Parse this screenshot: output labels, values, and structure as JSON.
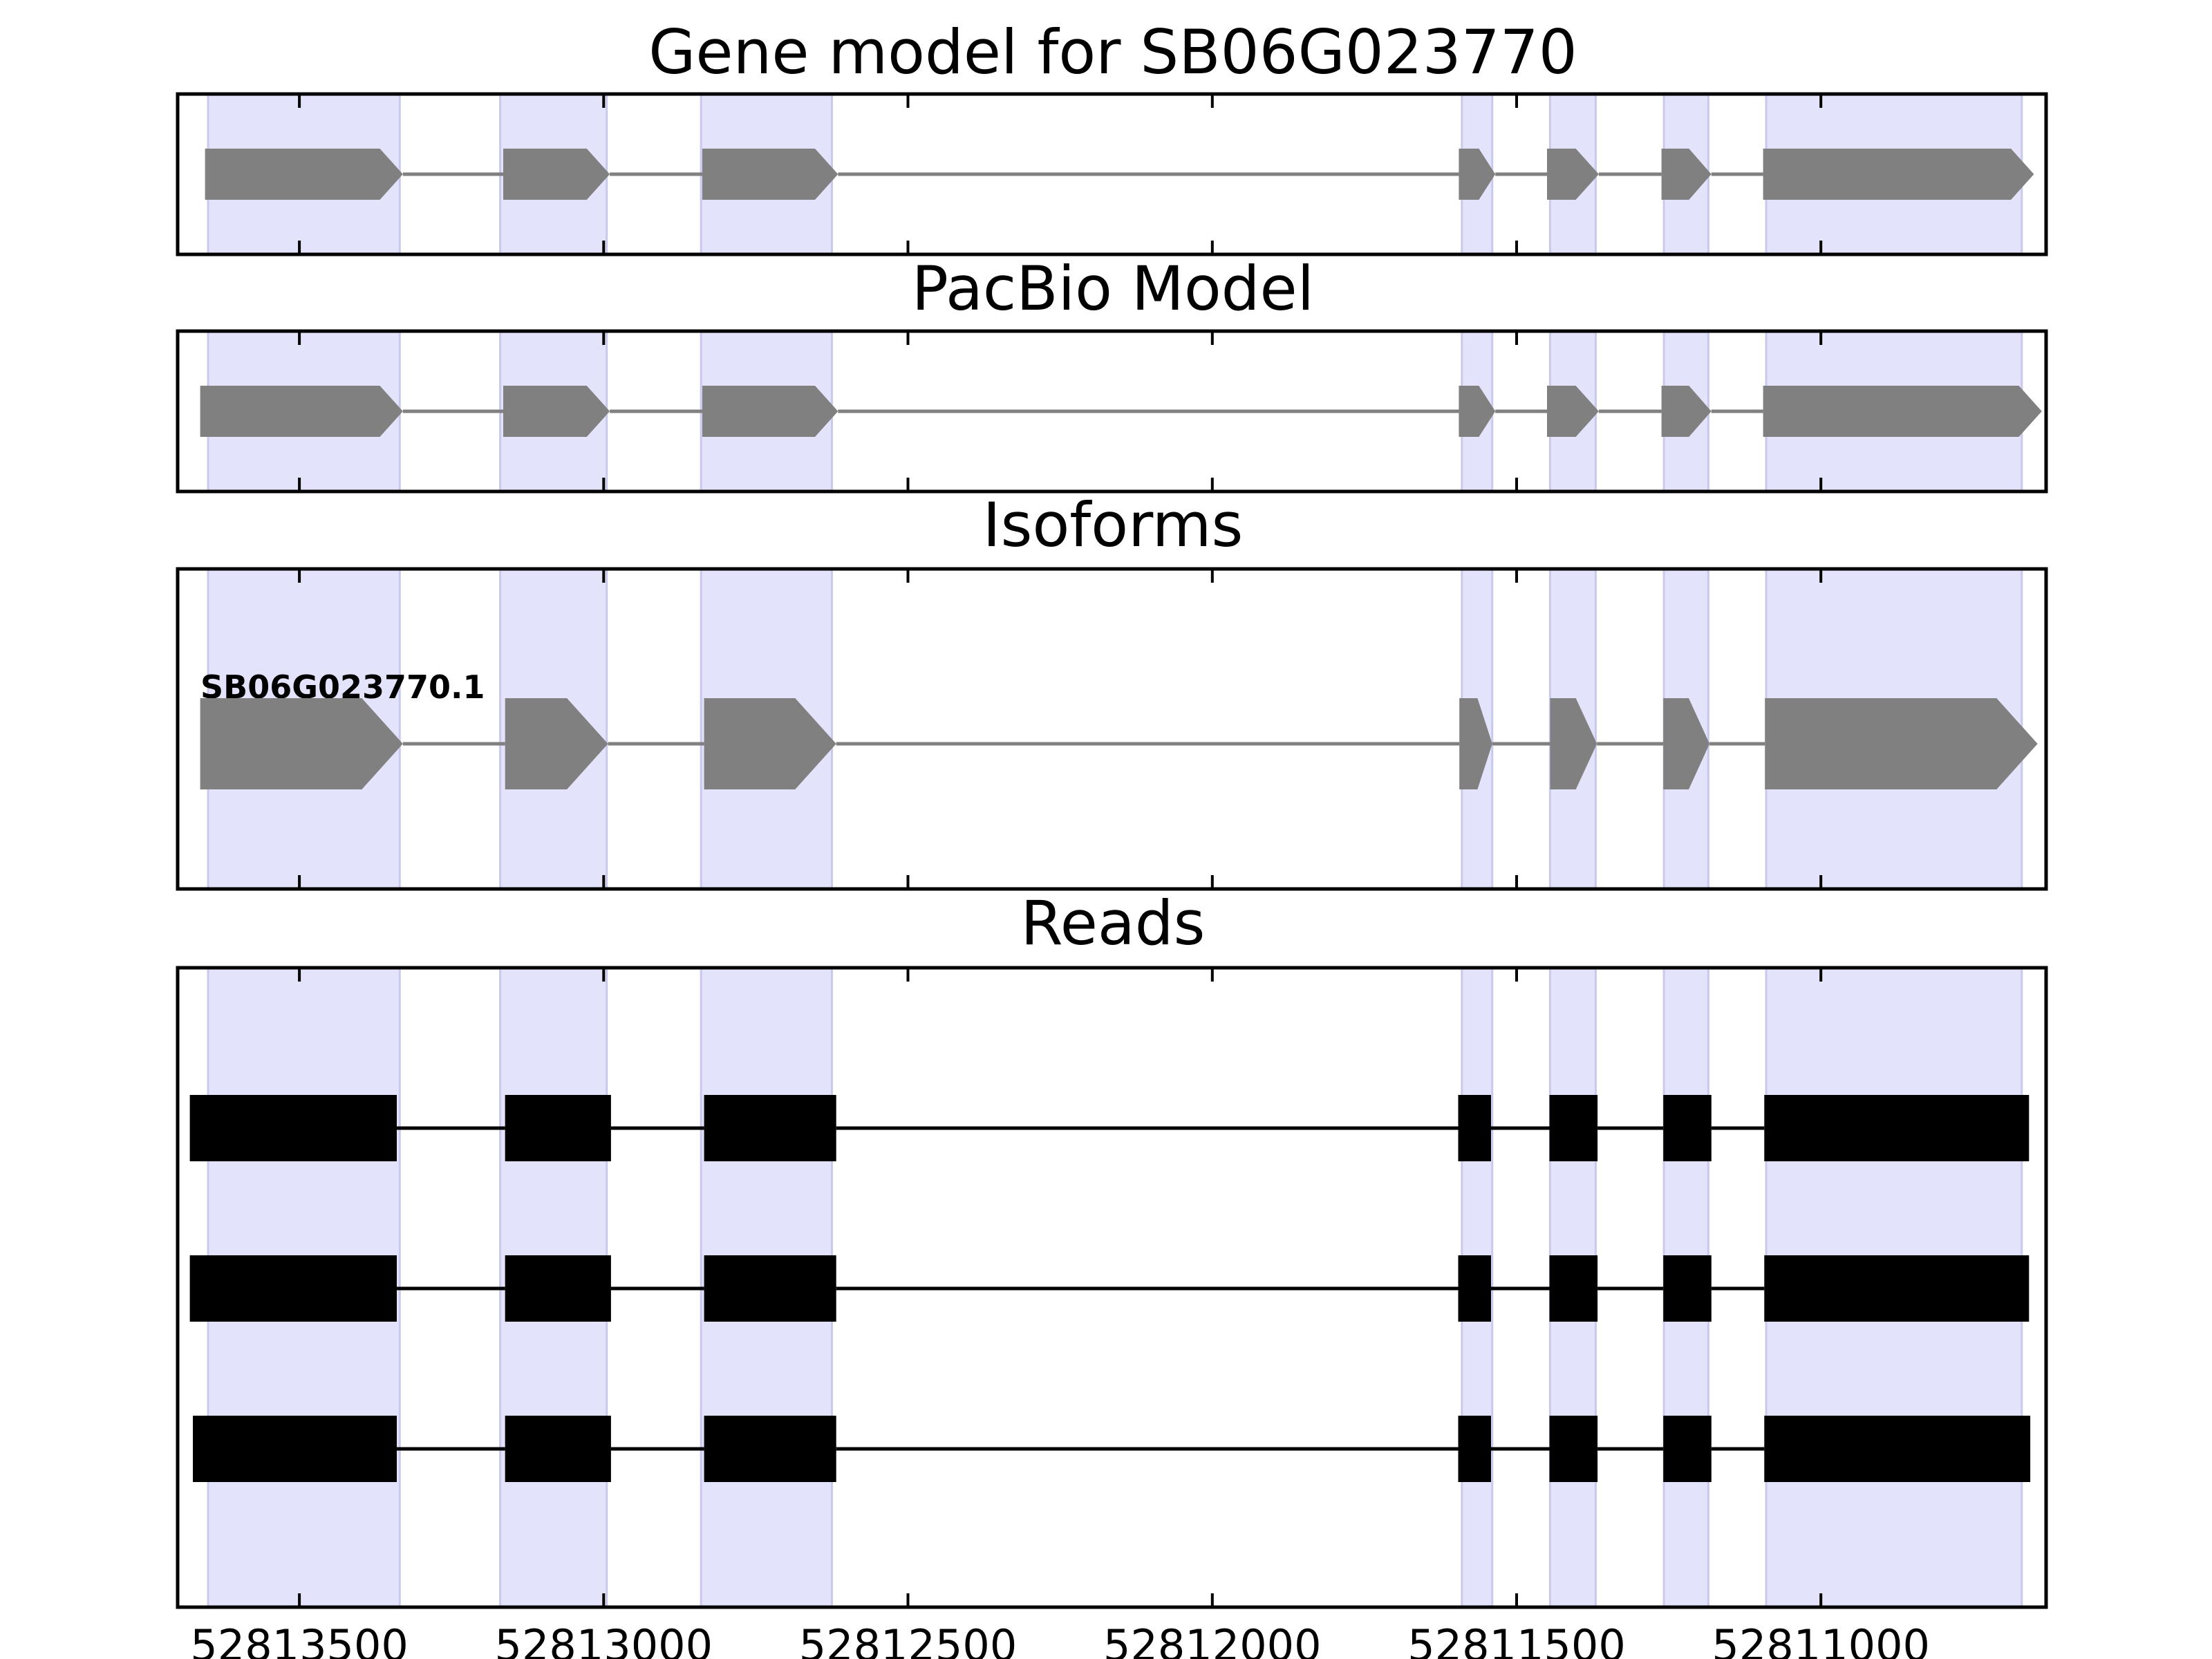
{
  "chart_data": {
    "type": "gene-structure",
    "xlim": [
      52813700,
      52810630
    ],
    "x_direction": "reversed",
    "x_ticks": [
      52813500,
      52813000,
      52812500,
      52812000,
      52811500,
      52811000
    ],
    "x_tick_labels": [
      "52813500",
      "52813000",
      "52812500",
      "52812000",
      "52811500",
      "52811000"
    ],
    "shaded_exons": [
      [
        52813650,
        52813335
      ],
      [
        52813170,
        52812995
      ],
      [
        52812840,
        52812625
      ],
      [
        52811590,
        52811540
      ],
      [
        52811445,
        52811370
      ],
      [
        52811258,
        52811185
      ],
      [
        52811090,
        52810670
      ]
    ],
    "colors": {
      "shade": "#e3e3fb",
      "shade_edge": "#c9c9ee",
      "model": "#808080",
      "read": "#000000",
      "axis": "#000000"
    },
    "panels": [
      {
        "title": "Gene model for SB06G023770",
        "kind": "model",
        "exons": [
          [
            52813655,
            52813330
          ],
          [
            52813165,
            52812990
          ],
          [
            52812838,
            52812615
          ],
          [
            52811595,
            52811535
          ],
          [
            52811450,
            52811365
          ],
          [
            52811262,
            52811180
          ],
          [
            52811095,
            52810650
          ]
        ]
      },
      {
        "title": "PacBio Model",
        "kind": "model",
        "exons": [
          [
            52813663,
            52813330
          ],
          [
            52813165,
            52812990
          ],
          [
            52812838,
            52812615
          ],
          [
            52811595,
            52811535
          ],
          [
            52811450,
            52811365
          ],
          [
            52811262,
            52811180
          ],
          [
            52811095,
            52810637
          ]
        ]
      },
      {
        "title": "Isoforms",
        "kind": "model",
        "isoforms": [
          {
            "label": "SB06G023770.1",
            "exons": [
              [
                52813663,
                52813330
              ],
              [
                52813162,
                52812993
              ],
              [
                52812835,
                52812618
              ],
              [
                52811594,
                52811540
              ],
              [
                52811445,
                52811368
              ],
              [
                52811259,
                52811183
              ],
              [
                52811092,
                52810644
              ]
            ]
          }
        ]
      },
      {
        "title": "Reads",
        "kind": "reads",
        "reads": [
          {
            "exons": [
              [
                52813680,
                52813340
              ],
              [
                52813162,
                52812988
              ],
              [
                52812835,
                52812618
              ],
              [
                52811596,
                52811542
              ],
              [
                52811446,
                52811367
              ],
              [
                52811259,
                52811180
              ],
              [
                52811093,
                52810658
              ]
            ]
          },
          {
            "exons": [
              [
                52813680,
                52813340
              ],
              [
                52813162,
                52812988
              ],
              [
                52812835,
                52812618
              ],
              [
                52811596,
                52811542
              ],
              [
                52811446,
                52811367
              ],
              [
                52811259,
                52811180
              ],
              [
                52811093,
                52810658
              ]
            ]
          },
          {
            "exons": [
              [
                52813675,
                52813340
              ],
              [
                52813162,
                52812988
              ],
              [
                52812835,
                52812618
              ],
              [
                52811596,
                52811542
              ],
              [
                52811446,
                52811367
              ],
              [
                52811259,
                52811180
              ],
              [
                52811093,
                52810656
              ]
            ]
          }
        ]
      }
    ]
  }
}
